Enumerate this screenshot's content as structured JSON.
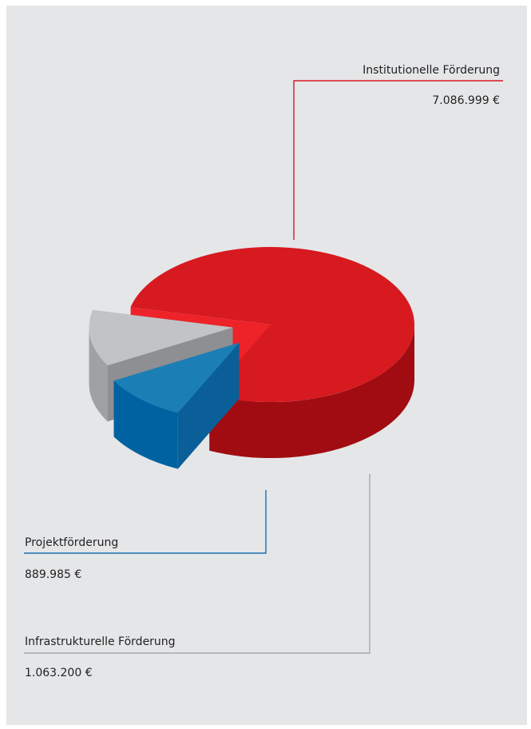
{
  "chart_data": {
    "type": "pie",
    "title": "",
    "style": "3d-exploded",
    "categories": [
      "Institutionelle Förderung",
      "Projektförderung",
      "Infrastrukturelle Förderung"
    ],
    "values": [
      7086999,
      889985,
      1063200
    ],
    "value_labels": [
      "7.086.999 €",
      "889.985 €",
      "1.063.200 €"
    ],
    "colors": {
      "institutionelle": {
        "top": "#d71920",
        "side": "#a00c12",
        "face": "#ee2229"
      },
      "projekt": {
        "top": "#1b7fb6",
        "side": "#0062a1",
        "face": "#0a5f98"
      },
      "infrastruktur": {
        "top": "#c2c3c6",
        "side": "#a0a1a4",
        "face": "#8e8f92"
      }
    },
    "leader_line_colors": {
      "institutionelle": "#d71920",
      "projekt": "#1a6fae",
      "infrastruktur": "#a6a7a9"
    },
    "background": "#e5e6e8",
    "legend": "none"
  }
}
